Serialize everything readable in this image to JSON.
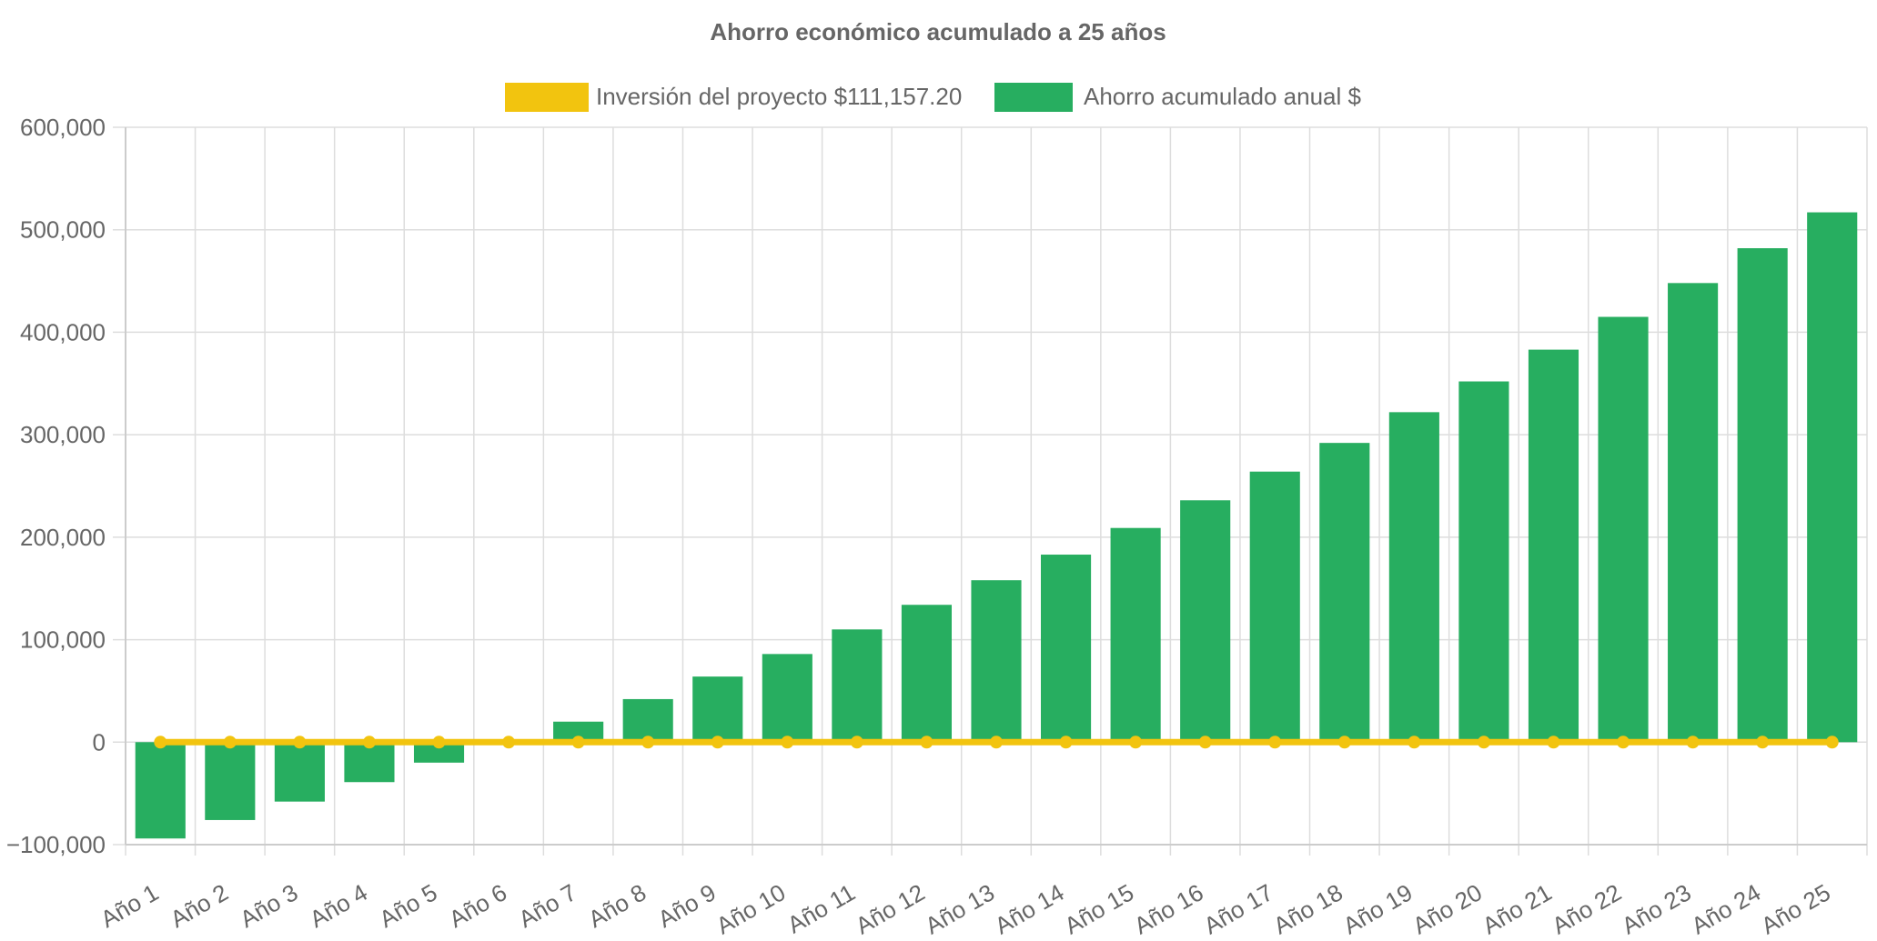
{
  "chart_data": {
    "type": "bar",
    "title": "Ahorro económico acumulado a 25 años",
    "xlabel": "",
    "ylabel": "",
    "ylim": [
      -100000,
      600000
    ],
    "yticks": [
      600000,
      500000,
      400000,
      300000,
      200000,
      100000,
      0,
      -100000
    ],
    "ytick_labels": [
      "600,000",
      "500,000",
      "400,000",
      "300,000",
      "200,000",
      "100,000",
      "0",
      "−100,000"
    ],
    "grid": true,
    "legend_position": "top-center",
    "categories": [
      "Año 1",
      "Año 2",
      "Año 3",
      "Año 4",
      "Año 5",
      "Año 6",
      "Año 7",
      "Año 8",
      "Año 9",
      "Año 10",
      "Año 11",
      "Año 12",
      "Año 13",
      "Año 14",
      "Año 15",
      "Año 16",
      "Año 17",
      "Año 18",
      "Año 19",
      "Año 20",
      "Año 21",
      "Año 22",
      "Año 23",
      "Año 24",
      "Año 25"
    ],
    "series": [
      {
        "name": "Inversión del proyecto $111,157.20",
        "type": "line",
        "color": "#f2c40f",
        "values": [
          0,
          0,
          0,
          0,
          0,
          0,
          0,
          0,
          0,
          0,
          0,
          0,
          0,
          0,
          0,
          0,
          0,
          0,
          0,
          0,
          0,
          0,
          0,
          0,
          0
        ]
      },
      {
        "name": "Ahorro acumulado anual $",
        "type": "bar",
        "color": "#27ae60",
        "values": [
          -94000,
          -76000,
          -58000,
          -39000,
          -20000,
          0,
          20000,
          42000,
          64000,
          86000,
          110000,
          134000,
          158000,
          183000,
          209000,
          236000,
          264000,
          292000,
          322000,
          352000,
          383000,
          415000,
          448000,
          482000,
          517000
        ]
      }
    ]
  }
}
